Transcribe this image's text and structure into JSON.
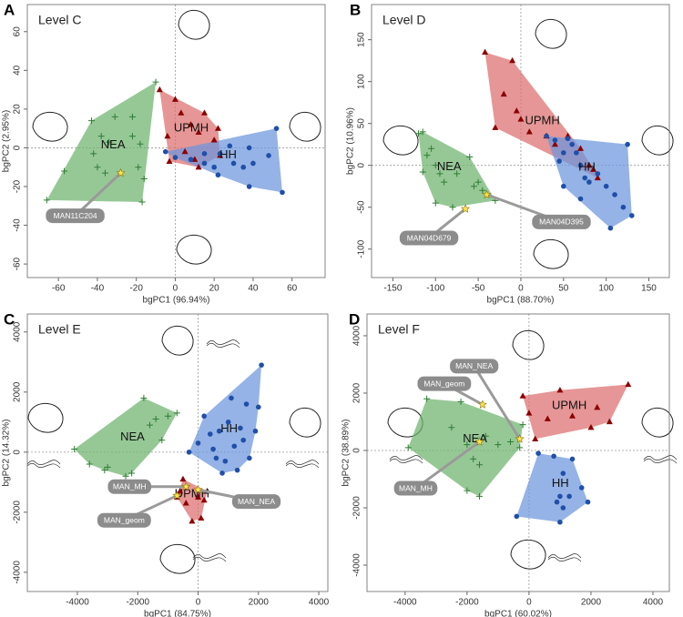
{
  "chart_data": [
    {
      "type": "scatter",
      "panel_label": "A",
      "title": "Level C",
      "x_label": "bgPC1 (96.94%)",
      "y_label": "bgPC2 (2.95%)",
      "xlim": [
        -76,
        77
      ],
      "ylim": [
        -67,
        74
      ],
      "xticks": [
        -60,
        -40,
        -20,
        0,
        20,
        40,
        60
      ],
      "yticks": [
        -60,
        -40,
        -20,
        0,
        20,
        40,
        60
      ],
      "zero_lines": true,
      "series": [
        {
          "name": "NEA",
          "color": "#6db36d",
          "marker": "plus",
          "marker_color": "#2e7d32",
          "x": [
            -66,
            -57,
            -43,
            -38,
            -34,
            -31,
            -22,
            -22,
            -18,
            -42,
            -40,
            -19,
            -17,
            -16,
            -10,
            -36
          ],
          "y": [
            -27,
            -12,
            14,
            6,
            3,
            16,
            16,
            6,
            2,
            -3,
            -10,
            -10,
            -28,
            -16,
            34,
            -13
          ]
        },
        {
          "name": "UPMH",
          "color": "#dd6e6e",
          "marker": "triangle",
          "marker_color": "#8b0000",
          "x": [
            -8,
            0,
            3,
            8,
            12,
            -4,
            5,
            10,
            20,
            22,
            -3,
            12,
            23,
            15
          ],
          "y": [
            30,
            25,
            18,
            12,
            8,
            6,
            -2,
            -6,
            4,
            10,
            -7,
            -10,
            -4,
            18
          ]
        },
        {
          "name": "HH",
          "color": "#6c95dc",
          "marker": "circle",
          "marker_color": "#1f4fa8",
          "x": [
            -5,
            0,
            8,
            15,
            20,
            22,
            35,
            38,
            40,
            48,
            52,
            38,
            55,
            23,
            28,
            15,
            30
          ],
          "y": [
            -2,
            -5,
            -6,
            -8,
            -10,
            -14,
            -10,
            0,
            -8,
            -4,
            10,
            -20,
            -23,
            -3,
            1,
            -3,
            -8
          ]
        }
      ],
      "annotations": [
        {
          "text": "MAN11C204",
          "x": -28,
          "y": -13
        }
      ],
      "star_color": "#ffe34d"
    },
    {
      "type": "scatter",
      "panel_label": "B",
      "title": "Level D",
      "x_label": "bgPC1 (88.70%)",
      "y_label": "bgPC2 (10.96%)",
      "xlim": [
        -175,
        174
      ],
      "ylim": [
        -134,
        192
      ],
      "xticks": [
        -150,
        -100,
        -50,
        0,
        50,
        100,
        150
      ],
      "yticks": [
        -100,
        -50,
        0,
        50,
        100,
        150
      ],
      "zero_lines": true,
      "series": [
        {
          "name": "NEA",
          "color": "#6db36d",
          "marker": "plus",
          "marker_color": "#2e7d32",
          "x": [
            -120,
            -115,
            -105,
            -110,
            -100,
            -95,
            -90,
            -75,
            -60,
            -55,
            -45,
            -30,
            -100,
            -80,
            -50,
            -115
          ],
          "y": [
            38,
            40,
            20,
            12,
            0,
            -10,
            -20,
            -10,
            10,
            -25,
            -30,
            -42,
            -45,
            -50,
            -20,
            -8
          ]
        },
        {
          "name": "UPMH",
          "color": "#dd6e6e",
          "marker": "triangle",
          "marker_color": "#8b0000",
          "x": [
            -42,
            -10,
            -20,
            -5,
            0,
            -30,
            10,
            30,
            40,
            55,
            70,
            80,
            85,
            90
          ],
          "y": [
            135,
            125,
            85,
            65,
            55,
            45,
            40,
            35,
            25,
            35,
            20,
            0,
            -5,
            -15
          ]
        },
        {
          "name": "HH",
          "color": "#6c95dc",
          "marker": "circle",
          "marker_color": "#1f4fa8",
          "x": [
            30,
            40,
            50,
            45,
            55,
            60,
            65,
            70,
            75,
            80,
            90,
            100,
            110,
            120,
            125,
            130,
            105,
            50,
            70
          ],
          "y": [
            35,
            30,
            15,
            5,
            32,
            25,
            15,
            0,
            -15,
            -20,
            -10,
            -25,
            -35,
            -50,
            25,
            -60,
            -75,
            -25,
            -40
          ]
        }
      ],
      "annotations": [
        {
          "text": "MAN04D679",
          "x": -65,
          "y": -52
        },
        {
          "text": "MAN04D395",
          "x": -40,
          "y": -35
        }
      ],
      "star_color": "#ffe34d"
    },
    {
      "type": "scatter",
      "panel_label": "C",
      "title": "Level E",
      "x_label": "bgPC1 (84.75%)",
      "y_label": "bgPC2 (14.32%)",
      "xlim": [
        -5660,
        4300
      ],
      "ylim": [
        -4640,
        4600
      ],
      "xticks": [
        -4000,
        -2000,
        0,
        2000,
        4000
      ],
      "yticks": [
        -4000,
        -2000,
        0,
        2000,
        4000
      ],
      "zero_lines": true,
      "series": [
        {
          "name": "NEA",
          "color": "#6db36d",
          "marker": "plus",
          "marker_color": "#2e7d32",
          "x": [
            -4100,
            -3600,
            -3000,
            -2400,
            -1800,
            -1600,
            -1400,
            -1200,
            -1000,
            -700,
            -3100,
            -2200
          ],
          "y": [
            100,
            -400,
            -500,
            -800,
            1800,
            900,
            1100,
            400,
            1200,
            1300,
            -600,
            -700
          ]
        },
        {
          "name": "UPMH",
          "color": "#dd6e6e",
          "marker": "triangle",
          "marker_color": "#8b0000",
          "x": [
            -500,
            -600,
            -400,
            0,
            200,
            300,
            -200,
            100,
            -700
          ],
          "y": [
            -900,
            -1300,
            -1700,
            -1500,
            -1600,
            -1300,
            -2300,
            -2200,
            -1500
          ]
        },
        {
          "name": "HH",
          "color": "#6c95dc",
          "marker": "circle",
          "marker_color": "#1f4fa8",
          "x": [
            -300,
            0,
            200,
            400,
            500,
            600,
            700,
            900,
            1000,
            1200,
            1300,
            1400,
            1500,
            1600,
            1700,
            1900,
            2100,
            2000,
            1100,
            800
          ],
          "y": [
            0,
            300,
            1200,
            600,
            100,
            -200,
            700,
            -300,
            1000,
            200,
            -600,
            800,
            400,
            1600,
            -200,
            700,
            2900,
            1500,
            1800,
            -700
          ]
        }
      ],
      "annotations": [
        {
          "text": "MAN_MH",
          "x": -400,
          "y": -1150
        },
        {
          "text": "MAN_NEA",
          "x": 0,
          "y": -1250
        },
        {
          "text": "MAN_geom",
          "x": -700,
          "y": -1450
        }
      ],
      "star_color": "#ffe34d"
    },
    {
      "type": "scatter",
      "panel_label": "D",
      "title": "Level F",
      "x_label": "bgPC1 (60.02%)",
      "y_label": "bgPC2 (38.89%)",
      "xlim": [
        -5230,
        4530
      ],
      "ylim": [
        -4920,
        4760
      ],
      "xticks": [
        -4000,
        -2000,
        0,
        2000,
        4000
      ],
      "yticks": [
        -4000,
        -2000,
        0,
        2000,
        4000
      ],
      "zero_lines": true,
      "series": [
        {
          "name": "NEA",
          "color": "#6db36d",
          "marker": "plus",
          "marker_color": "#2e7d32",
          "x": [
            -3900,
            -3300,
            -2200,
            -2500,
            -2000,
            -1800,
            -1600,
            -1400,
            -1000,
            -600,
            -300,
            -200,
            -2000,
            -1600
          ],
          "y": [
            100,
            1800,
            1700,
            800,
            200,
            -300,
            -500,
            500,
            200,
            300,
            100,
            900,
            -1400,
            -1600
          ]
        },
        {
          "name": "UPMH",
          "color": "#dd6e6e",
          "marker": "triangle",
          "marker_color": "#8b0000",
          "x": [
            -200,
            0,
            200,
            600,
            1000,
            1400,
            2000,
            2200,
            2600,
            3200
          ],
          "y": [
            1900,
            1300,
            400,
            1100,
            2100,
            1200,
            800,
            1500,
            1000,
            2300
          ]
        },
        {
          "name": "HH",
          "color": "#6c95dc",
          "marker": "circle",
          "marker_color": "#1f4fa8",
          "x": [
            -400,
            300,
            800,
            900,
            1000,
            1100,
            1300,
            1700,
            1900,
            1000,
            1100,
            1400
          ],
          "y": [
            -2300,
            -100,
            -200,
            -1800,
            -1600,
            -2000,
            -1600,
            -1300,
            -1800,
            -2500,
            -800,
            -300
          ]
        }
      ],
      "annotations": [
        {
          "text": "MAN_NEA",
          "x": -300,
          "y": 400
        },
        {
          "text": "MAN_geom",
          "x": -1500,
          "y": 1600
        },
        {
          "text": "MAN_MH",
          "x": -1600,
          "y": 300
        }
      ],
      "star_color": "#ffe34d"
    }
  ]
}
